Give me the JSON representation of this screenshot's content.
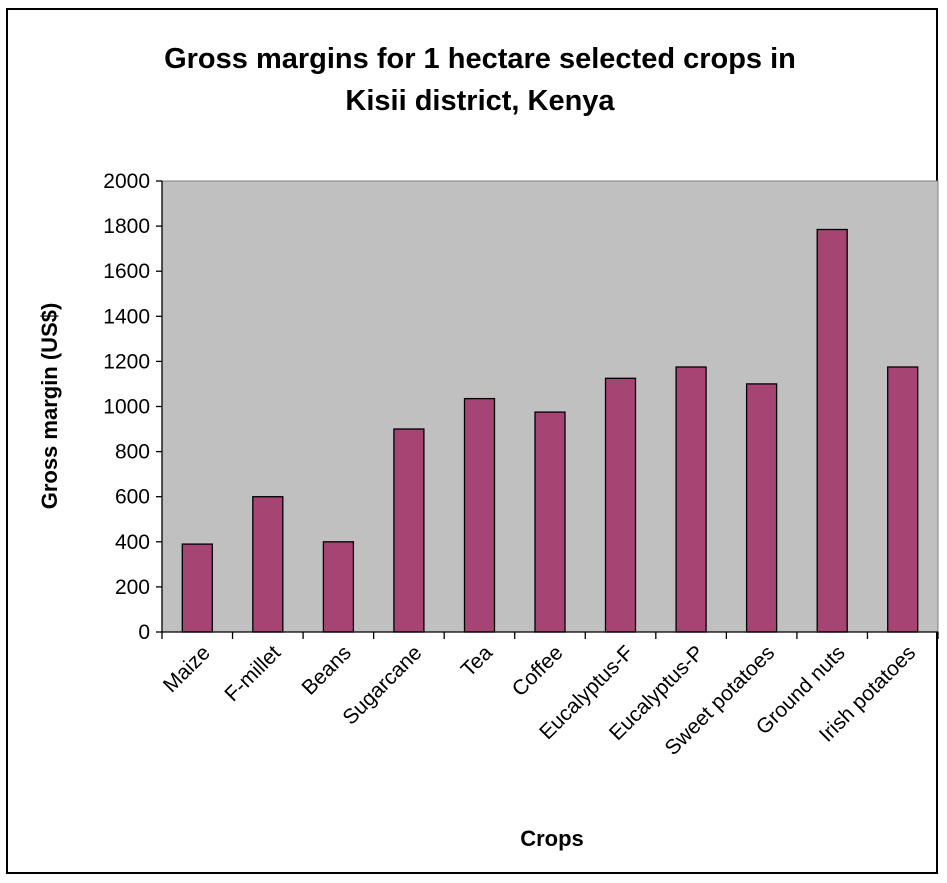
{
  "chart_data": {
    "type": "bar",
    "title_lines": [
      "Gross margins for 1 hectare selected crops in",
      "Kisii district, Kenya"
    ],
    "xlabel": "Crops",
    "ylabel": "Gross margin (US$)",
    "categories": [
      "Maize",
      "F-millet",
      "Beans",
      "Sugarcane",
      "Tea",
      "Coffee",
      "Eucalyptus-F",
      "Eucalyptus-P",
      "Sweet potatoes",
      "Ground nuts",
      "Irish potatoes"
    ],
    "values": [
      390,
      600,
      400,
      900,
      1035,
      975,
      1125,
      1175,
      1100,
      1785,
      1175
    ],
    "ylim": [
      0,
      2000
    ],
    "yticks": [
      0,
      200,
      400,
      600,
      800,
      1000,
      1200,
      1400,
      1600,
      1800,
      2000
    ],
    "grid": false,
    "legend": "none",
    "colors": {
      "bar_fill": "#A64474",
      "bar_stroke": "#000000",
      "plot_background": "#C0C0C0"
    }
  }
}
